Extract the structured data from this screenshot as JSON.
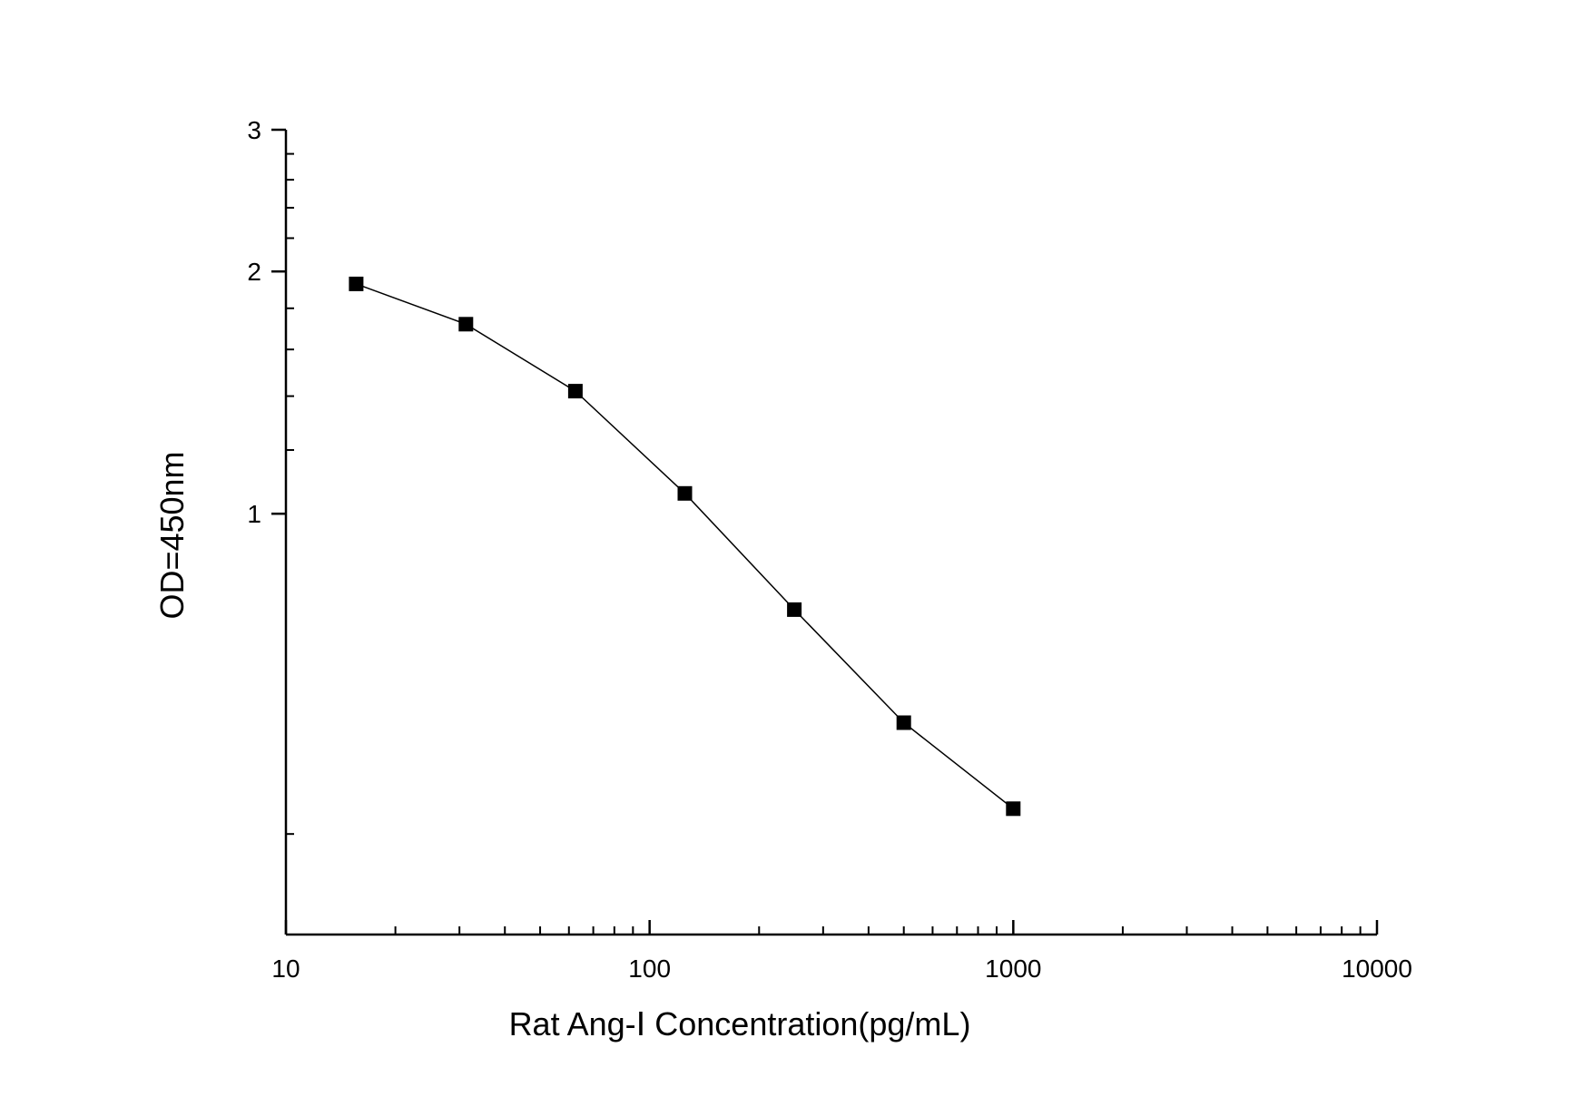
{
  "chart_data": {
    "type": "line",
    "title": "",
    "xlabel": "Rat Ang-Ⅰ Concentration(pg/mL)",
    "ylabel": "OD=450nm",
    "x_scale": "log",
    "y_scale": "log",
    "xlim": [
      10,
      10000
    ],
    "ylim": [
      0.3,
      3
    ],
    "x_ticks": [
      {
        "value": 10,
        "label": "10"
      },
      {
        "value": 100,
        "label": "100"
      },
      {
        "value": 1000,
        "label": "1000"
      },
      {
        "value": 10000,
        "label": "10000"
      }
    ],
    "y_ticks": [
      {
        "value": 1,
        "label": "1"
      },
      {
        "value": 2,
        "label": "2"
      },
      {
        "value": 3,
        "label": "3"
      }
    ],
    "grid": false,
    "legend": "none",
    "series": [
      {
        "marker": "square",
        "color": "#000000",
        "x": [
          15.6,
          31.25,
          62.5,
          125,
          250,
          500,
          1000
        ],
        "y": [
          1.93,
          1.72,
          1.42,
          1.06,
          0.76,
          0.55,
          0.43
        ]
      }
    ]
  }
}
